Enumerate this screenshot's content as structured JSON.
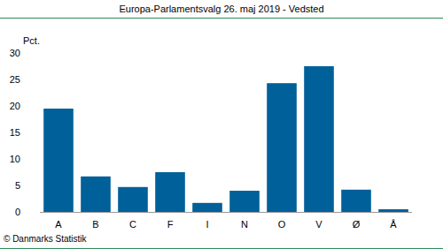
{
  "chart_data": {
    "type": "bar",
    "title": "Europa-Parlamentsvalg 26. maj 2019 - Vedsted",
    "ylabel": "Pct.",
    "source": "© Danmarks Statistik",
    "categories": [
      "A",
      "B",
      "C",
      "F",
      "I",
      "N",
      "O",
      "V",
      "Ø",
      "Å"
    ],
    "values": [
      19.5,
      6.7,
      4.7,
      7.5,
      1.7,
      4.0,
      24.3,
      27.5,
      4.2,
      0.5
    ],
    "color": "#00609a",
    "ylim": [
      0,
      30
    ],
    "yticks": [
      0,
      5,
      10,
      15,
      20,
      25,
      30
    ],
    "grid": false
  }
}
